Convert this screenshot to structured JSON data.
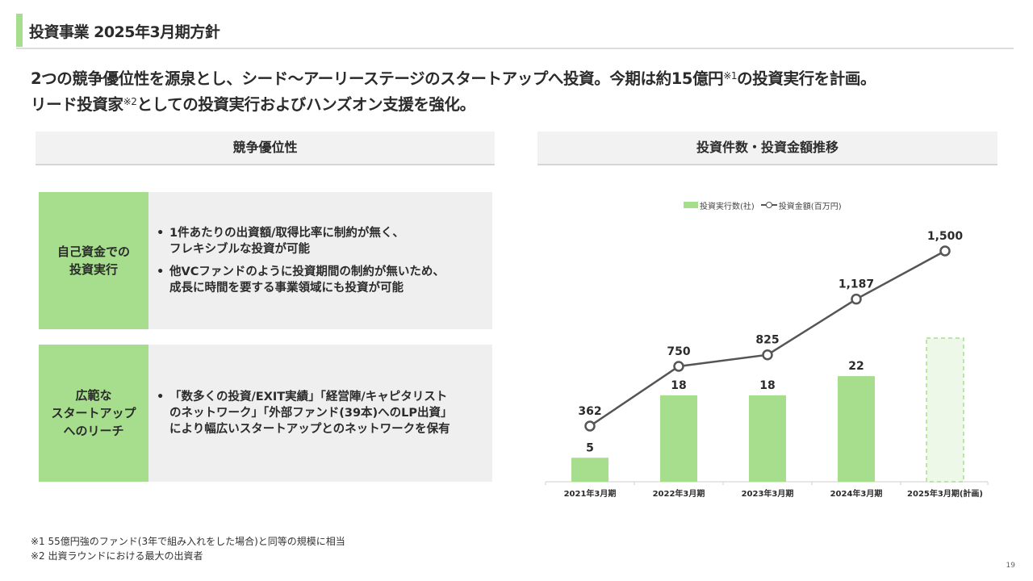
{
  "header": {
    "title": "投資事業 2025年3月期方針"
  },
  "lead": {
    "line1_a": "2つの競争優位性を源泉とし、シード～アーリーステージのスタートアップへ投資。今期は約15億円",
    "note1_mark": "※1",
    "line1_b": "の投資実行を計画。",
    "line2_a": "リード投資家",
    "note2_mark": "※2",
    "line2_b": "としての投資実行およびハンズオン支援を強化。"
  },
  "left_section": {
    "header": "競争優位性",
    "cards": [
      {
        "label_lines": [
          "自己資金での",
          "投資実行"
        ],
        "bullets": [
          [
            "1件あたりの出資額/取得比率に制約が無く、",
            "フレキシブルな投資が可能"
          ],
          [
            "他VCファンドのように投資期間の制約が無いため、",
            "成長に時間を要する事業領域にも投資が可能"
          ]
        ]
      },
      {
        "label_lines": [
          "広範な",
          "スタートアップ",
          "へのリーチ"
        ],
        "bullets": [
          [
            "「数多くの投資/EXIT実績」「経営陣/キャピタリスト",
            "のネットワーク」「外部ファンド(39本)へのLP出資」",
            "により幅広いスタートアップとのネットワークを保有"
          ]
        ]
      }
    ]
  },
  "right_section": {
    "header": "投資件数・投資金額推移"
  },
  "chart_data": {
    "type": "bar",
    "categories": [
      "2021年3月期",
      "2022年3月期",
      "2023年3月期",
      "2024年3月期",
      "2025年3月期(計画)"
    ],
    "series": [
      {
        "name": "投資実行数(社)",
        "type": "bar",
        "values": [
          5,
          18,
          18,
          22,
          null
        ],
        "labels": [
          "5",
          "18",
          "18",
          "22",
          ""
        ],
        "planned": [
          false,
          false,
          false,
          false,
          true
        ]
      },
      {
        "name": "投資金額(百万円)",
        "type": "line",
        "values": [
          362,
          750,
          825,
          1187,
          1500
        ],
        "labels": [
          "362",
          "750",
          "825",
          "1,187",
          "1,500"
        ]
      }
    ],
    "legend_position": "top-center",
    "grid": false,
    "colors": {
      "bar": "#a6de8e",
      "bar_planned_fill": "#eef8e9",
      "line": "#555555"
    }
  },
  "footnotes": {
    "note1": "※1 55億円強のファンド(3年で組み入れをした場合)と同等の規模に相当",
    "note2": "※2 出資ラウンドにおける最大の出資者"
  },
  "page_number": "19"
}
